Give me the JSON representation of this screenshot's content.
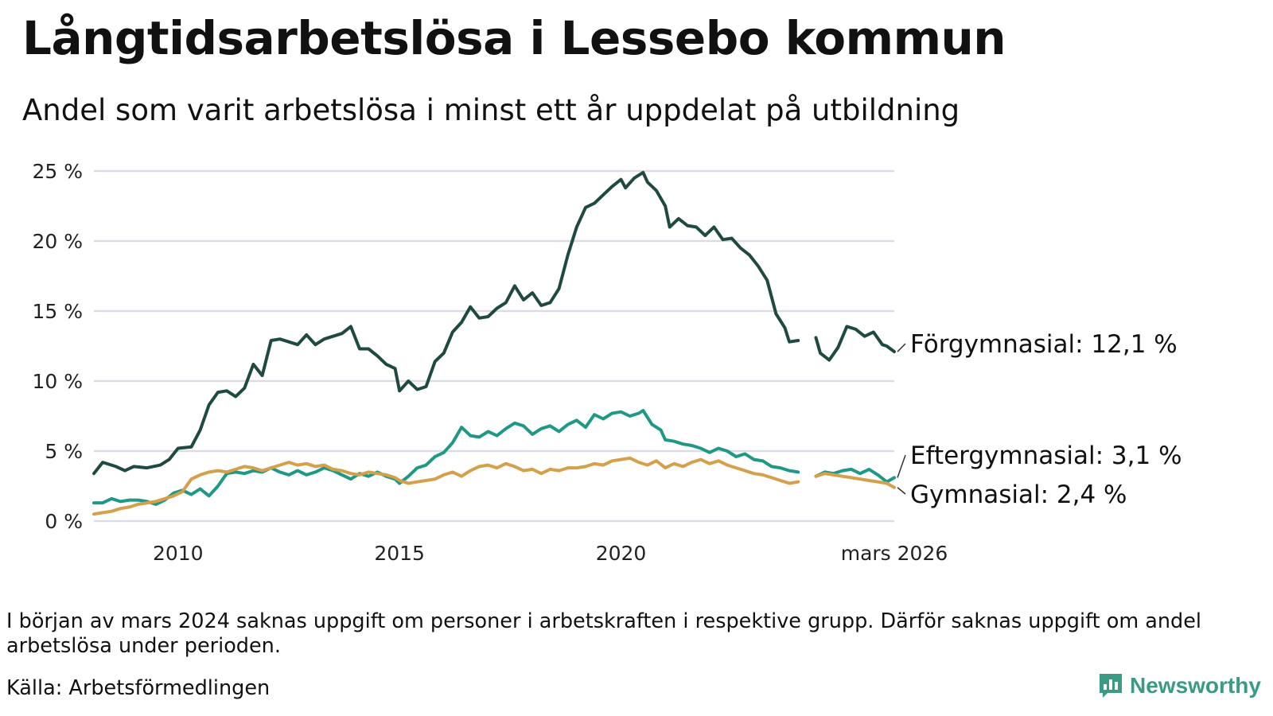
{
  "header": {
    "title": "Långtidsarbetslösa i Lessebo kommun",
    "subtitle": "Andel som varit arbetslösa i minst ett år uppdelat på utbildning"
  },
  "footer": {
    "note": "I början av mars 2024 saknas uppgift om personer i arbetskraften i respektive grupp. Därför saknas uppgift om andel arbetslösa under perioden.",
    "source": "Källa: Arbetsförmedlingen",
    "brand": "Newsworthy"
  },
  "chart_data": {
    "type": "line",
    "title": "Långtidsarbetslösa i Lessebo kommun",
    "subtitle": "Andel som varit arbetslösa i minst ett år uppdelat på utbildning",
    "xlabel": "",
    "ylabel": "",
    "xlim": [
      2008.1,
      2026.17
    ],
    "ylim": [
      0,
      25
    ],
    "grid": true,
    "y_ticks": [
      0,
      5,
      10,
      15,
      20,
      25
    ],
    "y_tick_labels": [
      "0 %",
      "5 %",
      "10 %",
      "15 %",
      "20 %",
      "25 %"
    ],
    "x_ticks": [
      2010,
      2015,
      2020,
      2026.17
    ],
    "x_tick_labels": [
      "2010",
      "2015",
      "2020",
      "mars 2026"
    ],
    "gap": [
      2024.0,
      2024.35
    ],
    "series": [
      {
        "name": "Förgymnasial",
        "label": "Förgymnasial: 12,1 %",
        "color": "#1f4a41",
        "points": [
          [
            2008.1,
            3.4
          ],
          [
            2008.3,
            4.2
          ],
          [
            2008.6,
            3.9
          ],
          [
            2008.8,
            3.6
          ],
          [
            2009.0,
            3.9
          ],
          [
            2009.3,
            3.8
          ],
          [
            2009.6,
            4.0
          ],
          [
            2009.8,
            4.4
          ],
          [
            2010.0,
            5.2
          ],
          [
            2010.3,
            5.3
          ],
          [
            2010.5,
            6.5
          ],
          [
            2010.7,
            8.3
          ],
          [
            2010.9,
            9.2
          ],
          [
            2011.1,
            9.3
          ],
          [
            2011.3,
            8.9
          ],
          [
            2011.5,
            9.5
          ],
          [
            2011.7,
            11.2
          ],
          [
            2011.9,
            10.4
          ],
          [
            2012.1,
            12.9
          ],
          [
            2012.3,
            13.0
          ],
          [
            2012.5,
            12.8
          ],
          [
            2012.7,
            12.6
          ],
          [
            2012.9,
            13.3
          ],
          [
            2013.1,
            12.6
          ],
          [
            2013.3,
            13.0
          ],
          [
            2013.5,
            13.2
          ],
          [
            2013.7,
            13.4
          ],
          [
            2013.9,
            13.9
          ],
          [
            2014.1,
            12.3
          ],
          [
            2014.3,
            12.3
          ],
          [
            2014.5,
            11.8
          ],
          [
            2014.7,
            11.2
          ],
          [
            2014.9,
            10.9
          ],
          [
            2015.0,
            9.3
          ],
          [
            2015.2,
            10.0
          ],
          [
            2015.4,
            9.4
          ],
          [
            2015.6,
            9.6
          ],
          [
            2015.8,
            11.4
          ],
          [
            2016.0,
            12.0
          ],
          [
            2016.2,
            13.5
          ],
          [
            2016.4,
            14.2
          ],
          [
            2016.6,
            15.3
          ],
          [
            2016.8,
            14.5
          ],
          [
            2017.0,
            14.6
          ],
          [
            2017.2,
            15.2
          ],
          [
            2017.4,
            15.6
          ],
          [
            2017.6,
            16.8
          ],
          [
            2017.8,
            15.8
          ],
          [
            2018.0,
            16.3
          ],
          [
            2018.2,
            15.4
          ],
          [
            2018.4,
            15.6
          ],
          [
            2018.6,
            16.6
          ],
          [
            2018.8,
            19.0
          ],
          [
            2019.0,
            21.0
          ],
          [
            2019.2,
            22.4
          ],
          [
            2019.4,
            22.7
          ],
          [
            2019.6,
            23.3
          ],
          [
            2019.8,
            23.9
          ],
          [
            2020.0,
            24.4
          ],
          [
            2020.1,
            23.8
          ],
          [
            2020.3,
            24.5
          ],
          [
            2020.5,
            24.9
          ],
          [
            2020.6,
            24.2
          ],
          [
            2020.8,
            23.6
          ],
          [
            2021.0,
            22.5
          ],
          [
            2021.1,
            21.0
          ],
          [
            2021.3,
            21.6
          ],
          [
            2021.5,
            21.1
          ],
          [
            2021.7,
            21.0
          ],
          [
            2021.9,
            20.4
          ],
          [
            2022.1,
            21.0
          ],
          [
            2022.3,
            20.1
          ],
          [
            2022.5,
            20.2
          ],
          [
            2022.7,
            19.5
          ],
          [
            2022.9,
            19.0
          ],
          [
            2023.1,
            18.2
          ],
          [
            2023.3,
            17.2
          ],
          [
            2023.5,
            14.8
          ],
          [
            2023.7,
            13.8
          ],
          [
            2023.8,
            12.8
          ],
          [
            2024.0,
            12.9
          ],
          [
            2024.2,
            12.6
          ],
          [
            2024.4,
            13.1
          ],
          [
            2024.5,
            12.0
          ],
          [
            2024.7,
            11.5
          ],
          [
            2024.9,
            12.4
          ],
          [
            2025.1,
            13.9
          ],
          [
            2025.3,
            13.7
          ],
          [
            2025.5,
            13.2
          ],
          [
            2025.7,
            13.5
          ],
          [
            2025.9,
            12.6
          ],
          [
            2026.0,
            12.5
          ],
          [
            2026.17,
            12.1
          ]
        ]
      },
      {
        "name": "Eftergymnasial",
        "label": "Eftergymnasial:  3,1 %",
        "color": "#1f9886",
        "points": [
          [
            2008.1,
            1.3
          ],
          [
            2008.3,
            1.3
          ],
          [
            2008.5,
            1.6
          ],
          [
            2008.7,
            1.4
          ],
          [
            2008.9,
            1.5
          ],
          [
            2009.1,
            1.5
          ],
          [
            2009.3,
            1.4
          ],
          [
            2009.5,
            1.2
          ],
          [
            2009.7,
            1.5
          ],
          [
            2009.9,
            2.0
          ],
          [
            2010.1,
            2.2
          ],
          [
            2010.3,
            1.9
          ],
          [
            2010.5,
            2.3
          ],
          [
            2010.7,
            1.8
          ],
          [
            2010.9,
            2.5
          ],
          [
            2011.1,
            3.4
          ],
          [
            2011.3,
            3.5
          ],
          [
            2011.5,
            3.4
          ],
          [
            2011.7,
            3.6
          ],
          [
            2011.9,
            3.5
          ],
          [
            2012.1,
            3.8
          ],
          [
            2012.3,
            3.5
          ],
          [
            2012.5,
            3.3
          ],
          [
            2012.7,
            3.6
          ],
          [
            2012.9,
            3.3
          ],
          [
            2013.1,
            3.5
          ],
          [
            2013.3,
            3.8
          ],
          [
            2013.5,
            3.6
          ],
          [
            2013.7,
            3.3
          ],
          [
            2013.9,
            3.0
          ],
          [
            2014.1,
            3.4
          ],
          [
            2014.3,
            3.2
          ],
          [
            2014.5,
            3.5
          ],
          [
            2014.7,
            3.2
          ],
          [
            2014.9,
            3.0
          ],
          [
            2015.0,
            2.7
          ],
          [
            2015.2,
            3.2
          ],
          [
            2015.4,
            3.8
          ],
          [
            2015.6,
            4.0
          ],
          [
            2015.8,
            4.6
          ],
          [
            2016.0,
            4.9
          ],
          [
            2016.2,
            5.6
          ],
          [
            2016.4,
            6.7
          ],
          [
            2016.6,
            6.1
          ],
          [
            2016.8,
            6.0
          ],
          [
            2017.0,
            6.4
          ],
          [
            2017.2,
            6.1
          ],
          [
            2017.4,
            6.6
          ],
          [
            2017.6,
            7.0
          ],
          [
            2017.8,
            6.8
          ],
          [
            2018.0,
            6.2
          ],
          [
            2018.2,
            6.6
          ],
          [
            2018.4,
            6.8
          ],
          [
            2018.6,
            6.4
          ],
          [
            2018.8,
            6.9
          ],
          [
            2019.0,
            7.2
          ],
          [
            2019.2,
            6.7
          ],
          [
            2019.4,
            7.6
          ],
          [
            2019.6,
            7.3
          ],
          [
            2019.8,
            7.7
          ],
          [
            2020.0,
            7.8
          ],
          [
            2020.2,
            7.5
          ],
          [
            2020.4,
            7.7
          ],
          [
            2020.5,
            7.9
          ],
          [
            2020.7,
            6.9
          ],
          [
            2020.9,
            6.5
          ],
          [
            2021.0,
            5.8
          ],
          [
            2021.2,
            5.7
          ],
          [
            2021.4,
            5.5
          ],
          [
            2021.6,
            5.4
          ],
          [
            2021.8,
            5.2
          ],
          [
            2022.0,
            4.9
          ],
          [
            2022.2,
            5.2
          ],
          [
            2022.4,
            5.0
          ],
          [
            2022.6,
            4.6
          ],
          [
            2022.8,
            4.8
          ],
          [
            2023.0,
            4.4
          ],
          [
            2023.2,
            4.3
          ],
          [
            2023.4,
            3.9
          ],
          [
            2023.6,
            3.8
          ],
          [
            2023.8,
            3.6
          ],
          [
            2024.0,
            3.5
          ],
          [
            2024.2,
            3.3
          ],
          [
            2024.4,
            3.2
          ],
          [
            2024.6,
            3.5
          ],
          [
            2024.8,
            3.4
          ],
          [
            2025.0,
            3.6
          ],
          [
            2025.2,
            3.7
          ],
          [
            2025.4,
            3.4
          ],
          [
            2025.6,
            3.7
          ],
          [
            2025.8,
            3.3
          ],
          [
            2026.0,
            2.8
          ],
          [
            2026.17,
            3.1
          ]
        ]
      },
      {
        "name": "Gymnasial",
        "label": "Gymnasial:  2,4 %",
        "color": "#d4a04a",
        "points": [
          [
            2008.1,
            0.5
          ],
          [
            2008.3,
            0.6
          ],
          [
            2008.5,
            0.7
          ],
          [
            2008.7,
            0.9
          ],
          [
            2008.9,
            1.0
          ],
          [
            2009.1,
            1.2
          ],
          [
            2009.3,
            1.3
          ],
          [
            2009.5,
            1.4
          ],
          [
            2009.7,
            1.6
          ],
          [
            2009.9,
            1.8
          ],
          [
            2010.1,
            2.1
          ],
          [
            2010.3,
            3.0
          ],
          [
            2010.5,
            3.3
          ],
          [
            2010.7,
            3.5
          ],
          [
            2010.9,
            3.6
          ],
          [
            2011.1,
            3.5
          ],
          [
            2011.3,
            3.7
          ],
          [
            2011.5,
            3.9
          ],
          [
            2011.7,
            3.8
          ],
          [
            2011.9,
            3.6
          ],
          [
            2012.1,
            3.8
          ],
          [
            2012.3,
            4.0
          ],
          [
            2012.5,
            4.2
          ],
          [
            2012.7,
            4.0
          ],
          [
            2012.9,
            4.1
          ],
          [
            2013.1,
            3.9
          ],
          [
            2013.3,
            4.0
          ],
          [
            2013.5,
            3.7
          ],
          [
            2013.7,
            3.6
          ],
          [
            2013.9,
            3.4
          ],
          [
            2014.1,
            3.3
          ],
          [
            2014.3,
            3.5
          ],
          [
            2014.5,
            3.4
          ],
          [
            2014.7,
            3.3
          ],
          [
            2014.9,
            3.1
          ],
          [
            2015.0,
            2.9
          ],
          [
            2015.2,
            2.7
          ],
          [
            2015.4,
            2.8
          ],
          [
            2015.6,
            2.9
          ],
          [
            2015.8,
            3.0
          ],
          [
            2016.0,
            3.3
          ],
          [
            2016.2,
            3.5
          ],
          [
            2016.4,
            3.2
          ],
          [
            2016.6,
            3.6
          ],
          [
            2016.8,
            3.9
          ],
          [
            2017.0,
            4.0
          ],
          [
            2017.2,
            3.8
          ],
          [
            2017.4,
            4.1
          ],
          [
            2017.6,
            3.9
          ],
          [
            2017.8,
            3.6
          ],
          [
            2018.0,
            3.7
          ],
          [
            2018.2,
            3.4
          ],
          [
            2018.4,
            3.7
          ],
          [
            2018.6,
            3.6
          ],
          [
            2018.8,
            3.8
          ],
          [
            2019.0,
            3.8
          ],
          [
            2019.2,
            3.9
          ],
          [
            2019.4,
            4.1
          ],
          [
            2019.6,
            4.0
          ],
          [
            2019.8,
            4.3
          ],
          [
            2020.0,
            4.4
          ],
          [
            2020.2,
            4.5
          ],
          [
            2020.4,
            4.2
          ],
          [
            2020.6,
            4.0
          ],
          [
            2020.8,
            4.3
          ],
          [
            2021.0,
            3.8
          ],
          [
            2021.2,
            4.1
          ],
          [
            2021.4,
            3.9
          ],
          [
            2021.6,
            4.2
          ],
          [
            2021.8,
            4.4
          ],
          [
            2022.0,
            4.1
          ],
          [
            2022.2,
            4.3
          ],
          [
            2022.4,
            4.0
          ],
          [
            2022.6,
            3.8
          ],
          [
            2022.8,
            3.6
          ],
          [
            2023.0,
            3.4
          ],
          [
            2023.2,
            3.3
          ],
          [
            2023.4,
            3.1
          ],
          [
            2023.6,
            2.9
          ],
          [
            2023.8,
            2.7
          ],
          [
            2024.0,
            2.8
          ],
          [
            2024.2,
            3.0
          ],
          [
            2024.4,
            3.2
          ],
          [
            2024.6,
            3.4
          ],
          [
            2024.8,
            3.3
          ],
          [
            2025.0,
            3.2
          ],
          [
            2025.2,
            3.1
          ],
          [
            2025.4,
            3.0
          ],
          [
            2025.6,
            2.9
          ],
          [
            2025.8,
            2.8
          ],
          [
            2026.0,
            2.7
          ],
          [
            2026.17,
            2.4
          ]
        ]
      }
    ]
  }
}
